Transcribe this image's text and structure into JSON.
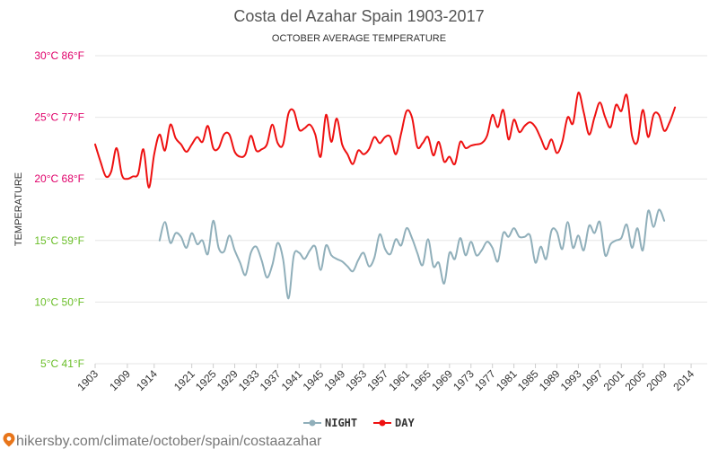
{
  "chart_data": {
    "type": "line",
    "title": "Costa del Azahar Spain 1903-2017",
    "subtitle": "OCTOBER AVERAGE TEMPERATURE",
    "ylabel": "TEMPERATURE",
    "ylim": [
      5,
      30
    ],
    "xlim": [
      1903,
      2017
    ],
    "grid": true,
    "legend_position": "bottom-center",
    "y_ticks": [
      {
        "value": 30,
        "label": "30°C 86°F",
        "color": "#e0006a"
      },
      {
        "value": 25,
        "label": "25°C 77°F",
        "color": "#e0006a"
      },
      {
        "value": 20,
        "label": "20°C 68°F",
        "color": "#e0006a"
      },
      {
        "value": 15,
        "label": "15°C 59°F",
        "color": "#6abe28"
      },
      {
        "value": 10,
        "label": "10°C 50°F",
        "color": "#6abe28"
      },
      {
        "value": 5,
        "label": "5°C 41°F",
        "color": "#6abe28"
      }
    ],
    "x_ticks": [
      "1903",
      "1909",
      "1914",
      "1921",
      "1925",
      "1929",
      "1933",
      "1937",
      "1941",
      "1945",
      "1949",
      "1953",
      "1957",
      "1961",
      "1965",
      "1969",
      "1973",
      "1977",
      "1981",
      "1985",
      "1989",
      "1993",
      "1997",
      "2001",
      "2005",
      "2009",
      "2014"
    ],
    "series": [
      {
        "name": "DAY",
        "color": "#ee1111",
        "points": [
          [
            1903,
            22.8
          ],
          [
            1904,
            21.4
          ],
          [
            1905,
            20.2
          ],
          [
            1906,
            20.6
          ],
          [
            1907,
            22.5
          ],
          [
            1908,
            20.3
          ],
          [
            1909,
            20.0
          ],
          [
            1910,
            20.2
          ],
          [
            1911,
            20.4
          ],
          [
            1912,
            22.4
          ],
          [
            1913,
            19.3
          ],
          [
            1914,
            22.0
          ],
          [
            1915,
            23.6
          ],
          [
            1916,
            22.3
          ],
          [
            1917,
            24.4
          ],
          [
            1918,
            23.3
          ],
          [
            1919,
            22.8
          ],
          [
            1920,
            22.2
          ],
          [
            1921,
            22.8
          ],
          [
            1922,
            23.4
          ],
          [
            1923,
            23.0
          ],
          [
            1924,
            24.3
          ],
          [
            1925,
            22.5
          ],
          [
            1926,
            22.5
          ],
          [
            1927,
            23.6
          ],
          [
            1928,
            23.6
          ],
          [
            1929,
            22.2
          ],
          [
            1930,
            21.8
          ],
          [
            1931,
            22.0
          ],
          [
            1932,
            23.5
          ],
          [
            1933,
            22.3
          ],
          [
            1934,
            22.4
          ],
          [
            1935,
            22.8
          ],
          [
            1936,
            24.4
          ],
          [
            1937,
            22.9
          ],
          [
            1938,
            22.8
          ],
          [
            1939,
            25.3
          ],
          [
            1940,
            25.5
          ],
          [
            1941,
            24.0
          ],
          [
            1942,
            24.1
          ],
          [
            1943,
            24.4
          ],
          [
            1944,
            23.6
          ],
          [
            1945,
            21.8
          ],
          [
            1946,
            25.2
          ],
          [
            1947,
            23.0
          ],
          [
            1948,
            24.9
          ],
          [
            1949,
            22.8
          ],
          [
            1950,
            22.0
          ],
          [
            1951,
            21.2
          ],
          [
            1952,
            22.3
          ],
          [
            1953,
            22.0
          ],
          [
            1954,
            22.4
          ],
          [
            1955,
            23.4
          ],
          [
            1956,
            22.9
          ],
          [
            1957,
            23.4
          ],
          [
            1958,
            23.4
          ],
          [
            1959,
            22.0
          ],
          [
            1960,
            23.7
          ],
          [
            1961,
            25.5
          ],
          [
            1962,
            25.0
          ],
          [
            1963,
            22.6
          ],
          [
            1964,
            22.9
          ],
          [
            1965,
            23.4
          ],
          [
            1966,
            21.9
          ],
          [
            1967,
            23.0
          ],
          [
            1968,
            21.4
          ],
          [
            1969,
            21.8
          ],
          [
            1970,
            21.2
          ],
          [
            1971,
            23.0
          ],
          [
            1972,
            22.5
          ],
          [
            1973,
            22.7
          ],
          [
            1974,
            22.8
          ],
          [
            1975,
            22.9
          ],
          [
            1976,
            23.5
          ],
          [
            1977,
            25.2
          ],
          [
            1978,
            24.2
          ],
          [
            1979,
            25.6
          ],
          [
            1980,
            23.2
          ],
          [
            1981,
            24.8
          ],
          [
            1982,
            23.8
          ],
          [
            1983,
            24.3
          ],
          [
            1984,
            24.6
          ],
          [
            1985,
            24.2
          ],
          [
            1986,
            23.3
          ],
          [
            1987,
            22.4
          ],
          [
            1988,
            23.2
          ],
          [
            1989,
            22.1
          ],
          [
            1990,
            23.0
          ],
          [
            1991,
            25.0
          ],
          [
            1992,
            24.5
          ],
          [
            1993,
            27.0
          ],
          [
            1994,
            25.4
          ],
          [
            1995,
            23.6
          ],
          [
            1996,
            25.0
          ],
          [
            1997,
            26.2
          ],
          [
            1998,
            25.0
          ],
          [
            1999,
            24.2
          ],
          [
            2000,
            26.0
          ],
          [
            2001,
            25.5
          ],
          [
            2002,
            26.8
          ],
          [
            2003,
            23.5
          ],
          [
            2004,
            23.0
          ],
          [
            2005,
            25.6
          ],
          [
            2006,
            23.4
          ],
          [
            2007,
            25.2
          ],
          [
            2008,
            25.2
          ],
          [
            2009,
            23.9
          ],
          [
            2010,
            24.6
          ],
          [
            2011,
            25.8
          ]
        ]
      },
      {
        "name": "NIGHT",
        "color": "#90afba",
        "points": [
          [
            1915,
            15.0
          ],
          [
            1916,
            16.5
          ],
          [
            1917,
            14.8
          ],
          [
            1918,
            15.6
          ],
          [
            1919,
            15.3
          ],
          [
            1920,
            14.4
          ],
          [
            1921,
            15.6
          ],
          [
            1922,
            14.7
          ],
          [
            1923,
            15.0
          ],
          [
            1924,
            13.9
          ],
          [
            1925,
            16.6
          ],
          [
            1926,
            14.4
          ],
          [
            1927,
            14.1
          ],
          [
            1928,
            15.4
          ],
          [
            1929,
            14.2
          ],
          [
            1930,
            13.2
          ],
          [
            1931,
            12.2
          ],
          [
            1932,
            14.0
          ],
          [
            1933,
            14.5
          ],
          [
            1934,
            13.4
          ],
          [
            1935,
            12.0
          ],
          [
            1936,
            13.0
          ],
          [
            1937,
            14.8
          ],
          [
            1938,
            13.5
          ],
          [
            1939,
            10.3
          ],
          [
            1940,
            13.8
          ],
          [
            1941,
            14.0
          ],
          [
            1942,
            13.5
          ],
          [
            1943,
            14.2
          ],
          [
            1944,
            14.5
          ],
          [
            1945,
            12.6
          ],
          [
            1946,
            14.6
          ],
          [
            1947,
            13.8
          ],
          [
            1948,
            13.5
          ],
          [
            1949,
            13.3
          ],
          [
            1950,
            12.9
          ],
          [
            1951,
            12.5
          ],
          [
            1952,
            13.4
          ],
          [
            1953,
            14.0
          ],
          [
            1954,
            12.9
          ],
          [
            1955,
            13.6
          ],
          [
            1956,
            15.5
          ],
          [
            1957,
            14.3
          ],
          [
            1958,
            13.9
          ],
          [
            1959,
            15.1
          ],
          [
            1960,
            14.6
          ],
          [
            1961,
            16.0
          ],
          [
            1962,
            15.2
          ],
          [
            1963,
            14.0
          ],
          [
            1964,
            13.0
          ],
          [
            1965,
            15.1
          ],
          [
            1966,
            12.9
          ],
          [
            1967,
            13.2
          ],
          [
            1968,
            11.5
          ],
          [
            1969,
            14.0
          ],
          [
            1970,
            13.5
          ],
          [
            1971,
            15.2
          ],
          [
            1972,
            13.8
          ],
          [
            1973,
            14.9
          ],
          [
            1974,
            13.8
          ],
          [
            1975,
            14.2
          ],
          [
            1976,
            14.9
          ],
          [
            1977,
            14.4
          ],
          [
            1978,
            13.3
          ],
          [
            1979,
            15.6
          ],
          [
            1980,
            15.3
          ],
          [
            1981,
            16.0
          ],
          [
            1982,
            15.3
          ],
          [
            1983,
            15.3
          ],
          [
            1984,
            15.4
          ],
          [
            1985,
            13.2
          ],
          [
            1986,
            14.5
          ],
          [
            1987,
            13.5
          ],
          [
            1988,
            15.8
          ],
          [
            1989,
            15.7
          ],
          [
            1990,
            14.3
          ],
          [
            1991,
            16.5
          ],
          [
            1992,
            14.4
          ],
          [
            1993,
            15.4
          ],
          [
            1994,
            14.2
          ],
          [
            1995,
            16.2
          ],
          [
            1996,
            15.6
          ],
          [
            1997,
            16.5
          ],
          [
            1998,
            13.8
          ],
          [
            1999,
            14.7
          ],
          [
            2000,
            15.0
          ],
          [
            2001,
            15.2
          ],
          [
            2002,
            16.3
          ],
          [
            2003,
            14.4
          ],
          [
            2004,
            16.0
          ],
          [
            2005,
            14.2
          ],
          [
            2006,
            17.4
          ],
          [
            2007,
            16.1
          ],
          [
            2008,
            17.5
          ],
          [
            2009,
            16.6
          ]
        ]
      }
    ]
  },
  "legend": [
    {
      "label": "NIGHT",
      "color": "#90afba"
    },
    {
      "label": "DAY",
      "color": "#ee1111"
    }
  ],
  "source_text": "hikersby.com/climate/october/spain/costaazahar",
  "source_icon": "map-pin-icon",
  "source_icon_color": "#e8751a"
}
